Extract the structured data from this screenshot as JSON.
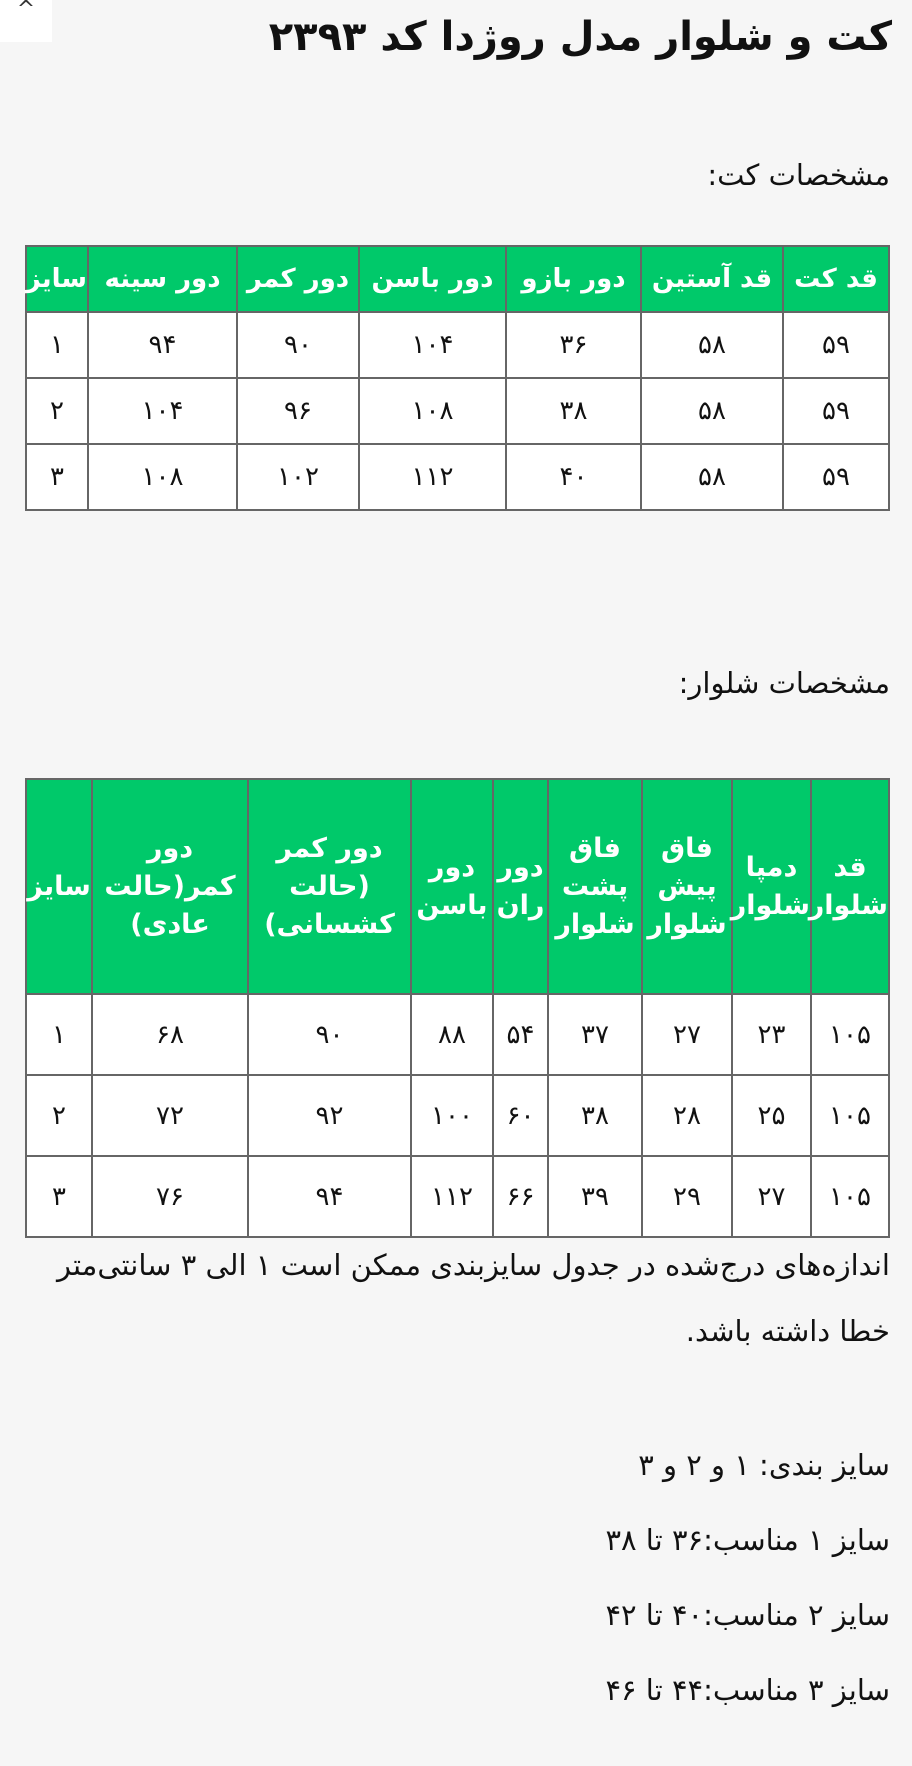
{
  "nav": {
    "scroll_up_icon": "chevron-up-icon",
    "scroll_up_glyph": "^"
  },
  "title": "کت و شلوار مدل روژدا کد ۲۳۹۳",
  "jacket": {
    "heading": "مشخصات کت:",
    "headers": [
      "قد کت",
      "قد آستین",
      "دور بازو",
      "دور باسن",
      "دور کمر",
      "دور سینه",
      "سایز"
    ],
    "rows": [
      [
        "۵۹",
        "۵۸",
        "۳۶",
        "۱۰۴",
        "۹۰",
        "۹۴",
        "۱"
      ],
      [
        "۵۹",
        "۵۸",
        "۳۸",
        "۱۰۸",
        "۹۶",
        "۱۰۴",
        "۲"
      ],
      [
        "۵۹",
        "۵۸",
        "۴۰",
        "۱۱۲",
        "۱۰۲",
        "۱۰۸",
        "۳"
      ]
    ]
  },
  "pants": {
    "heading": "مشخصات شلوار:",
    "headers": [
      "قد شلوار",
      "دمپا شلوار",
      "فاق پیش شلوار",
      "فاق پشت شلوار",
      "دور ران",
      "دور باسن",
      "دور کمر (حالت کشسانی)",
      "دور کمر(حالت عادی)",
      "سایز"
    ],
    "rows": [
      [
        "۱۰۵",
        "۲۳",
        "۲۷",
        "۳۷",
        "۵۴",
        "۸۸",
        "۹۰",
        "۶۸",
        "۱"
      ],
      [
        "۱۰۵",
        "۲۵",
        "۲۸",
        "۳۸",
        "۶۰",
        "۱۰۰",
        "۹۲",
        "۷۲",
        "۲"
      ],
      [
        "۱۰۵",
        "۲۷",
        "۲۹",
        "۳۹",
        "۶۶",
        "۱۱۲",
        "۹۴",
        "۷۶",
        "۳"
      ]
    ]
  },
  "note": "اندازه‌های درج‌شده در جدول سایزبندی ممکن است ۱ الی ۳ سانتی‌متر خطا داشته باشد.",
  "sizes": [
    "سایز بندی: ۱ و ۲ و ۳",
    "سایز ۱ مناسب:۳۶ تا ۳۸",
    "سایز ۲ مناسب:۴۰ تا ۴۲",
    "سایز ۳ مناسب:۴۴ تا ۴۶"
  ],
  "colors": {
    "header_green": "#00c96a"
  }
}
